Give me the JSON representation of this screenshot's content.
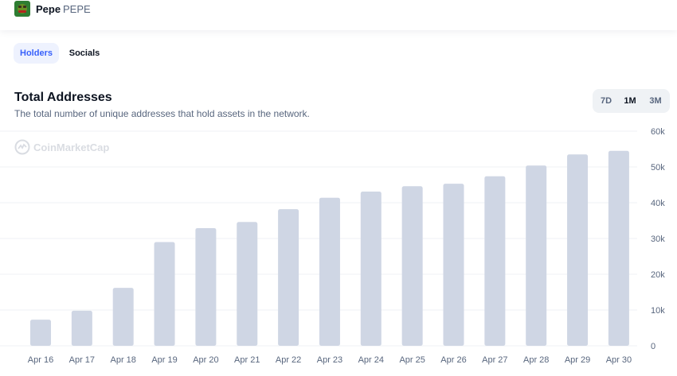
{
  "header": {
    "coin_name": "Pepe",
    "coin_symbol": "PEPE"
  },
  "tabs": [
    {
      "label": "Holders",
      "active": true
    },
    {
      "label": "Socials",
      "active": false
    }
  ],
  "chart_section": {
    "title": "Total Addresses",
    "subtitle": "The total number of unique addresses that hold assets in the network.",
    "ranges": [
      {
        "label": "7D",
        "active": false
      },
      {
        "label": "1M",
        "active": true
      },
      {
        "label": "3M",
        "active": false
      }
    ],
    "watermark": "CoinMarketCap"
  },
  "colors": {
    "accent": "#3861fb",
    "bar": "#cfd6e4",
    "grid": "#eff2f5",
    "text_muted": "#58667e"
  },
  "chart_data": {
    "type": "bar",
    "categories": [
      "Apr 16",
      "Apr 17",
      "Apr 18",
      "Apr 19",
      "Apr 20",
      "Apr 21",
      "Apr 22",
      "Apr 23",
      "Apr 24",
      "Apr 25",
      "Apr 26",
      "Apr 27",
      "Apr 28",
      "Apr 29",
      "Apr 30"
    ],
    "values": [
      7300,
      9800,
      16200,
      29000,
      32900,
      34600,
      38200,
      41400,
      43100,
      44600,
      45300,
      47400,
      50400,
      53500,
      54500
    ],
    "title": "Total Addresses",
    "xlabel": "",
    "ylabel": "",
    "ylim": [
      0,
      60000
    ],
    "yticks": [
      "0",
      "10k",
      "20k",
      "30k",
      "40k",
      "50k",
      "60k"
    ],
    "ytick_values": [
      0,
      10000,
      20000,
      30000,
      40000,
      50000,
      60000
    ],
    "grid": true,
    "y_axis_side": "right"
  }
}
